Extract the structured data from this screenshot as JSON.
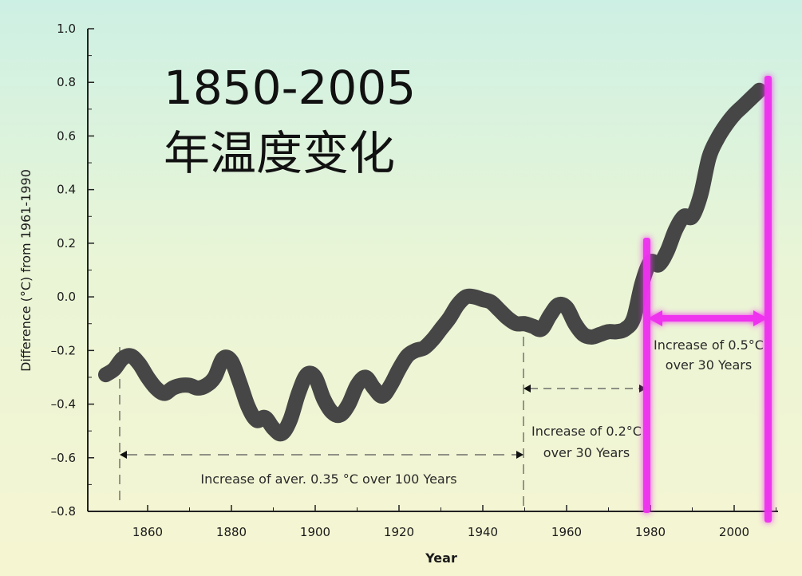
{
  "chart_data": {
    "type": "line",
    "title_line1": "1850-2005",
    "title_line2": "年温度变化",
    "xlabel": "Year",
    "ylabel": "Difference (°C) from 1961-1990",
    "xlim": [
      1846,
      2010
    ],
    "ylim": [
      -0.8,
      1.0
    ],
    "x_ticks": [
      1860,
      1880,
      1900,
      1920,
      1940,
      1960,
      1980,
      2000
    ],
    "y_ticks": [
      1.0,
      0.8,
      0.6,
      0.4,
      0.2,
      0.0,
      -0.2,
      -0.4,
      -0.6,
      -0.8
    ],
    "y_tick_labels": [
      "1.0",
      "0.8",
      "0.6",
      "0.4",
      "0.2",
      "0.0",
      "–0.2",
      "–0.4",
      "–0.6",
      "–0.8"
    ],
    "grid": false,
    "series": [
      {
        "x": [
          1850,
          1852,
          1854,
          1856,
          1858,
          1860,
          1862,
          1864,
          1866,
          1868,
          1870,
          1872,
          1874,
          1876,
          1878,
          1880,
          1882,
          1884,
          1886,
          1888,
          1890,
          1892,
          1894,
          1896,
          1898,
          1900,
          1902,
          1904,
          1906,
          1908,
          1910,
          1912,
          1914,
          1916,
          1918,
          1920,
          1922,
          1924,
          1926,
          1928,
          1930,
          1932,
          1934,
          1936,
          1938,
          1940,
          1942,
          1944,
          1946,
          1948,
          1950,
          1952,
          1954,
          1956,
          1958,
          1960,
          1962,
          1964,
          1966,
          1968,
          1970,
          1972,
          1974,
          1976,
          1978,
          1980,
          1982,
          1984,
          1986,
          1988,
          1990,
          1992,
          1994,
          1996,
          1998,
          2000,
          2002,
          2004,
          2006
        ],
        "values": [
          -0.29,
          -0.27,
          -0.23,
          -0.22,
          -0.25,
          -0.3,
          -0.34,
          -0.36,
          -0.34,
          -0.33,
          -0.33,
          -0.34,
          -0.33,
          -0.3,
          -0.23,
          -0.24,
          -0.32,
          -0.41,
          -0.46,
          -0.45,
          -0.49,
          -0.51,
          -0.46,
          -0.36,
          -0.29,
          -0.3,
          -0.38,
          -0.43,
          -0.44,
          -0.4,
          -0.33,
          -0.3,
          -0.34,
          -0.37,
          -0.33,
          -0.27,
          -0.22,
          -0.2,
          -0.19,
          -0.16,
          -0.12,
          -0.08,
          -0.03,
          0.0,
          0.0,
          -0.01,
          -0.02,
          -0.05,
          -0.08,
          -0.1,
          -0.1,
          -0.11,
          -0.12,
          -0.07,
          -0.03,
          -0.04,
          -0.1,
          -0.14,
          -0.15,
          -0.14,
          -0.13,
          -0.13,
          -0.12,
          -0.08,
          0.05,
          0.13,
          0.12,
          0.17,
          0.25,
          0.3,
          0.3,
          0.38,
          0.52,
          0.59,
          0.64,
          0.68,
          0.71,
          0.74,
          0.77
        ]
      }
    ],
    "annotations": [
      {
        "text": "Increase of aver. 0.35 °C over 100 Years"
      },
      {
        "text_line1": "Increase of 0.2°C",
        "text_line2": "over 30 Years"
      },
      {
        "text_line1": "Increase of 0.5°C",
        "text_line2": "over 30 Years"
      }
    ],
    "colors": {
      "line": "#464646",
      "highlight": "#ee33ee",
      "guide": "#555555",
      "axis": "#222222"
    }
  }
}
